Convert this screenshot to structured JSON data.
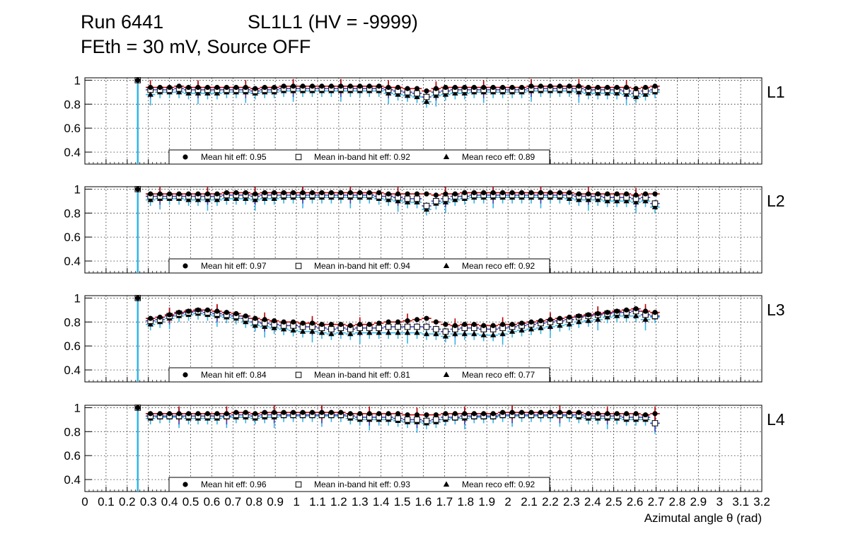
{
  "header": {
    "run": "Run 6441",
    "chamber": "SL1L1 (HV = -9999)",
    "conditions": "FEth = 30 mV, Source OFF"
  },
  "colors": {
    "hit": "#000000",
    "hit_bar": "#c00000",
    "inband_bar": "#4040c0",
    "reco_bar": "#33b5e5",
    "grid": "#000000",
    "frame": "#000000"
  },
  "chart_data": [
    {
      "type": "scatter",
      "layer": "L1",
      "xlabel": "Azimutal angle θ (rad)",
      "ylabel": "",
      "xlim": [
        0,
        3.2
      ],
      "ylim": [
        0.3,
        1.02
      ],
      "yticks": [
        "0.4",
        "0.6",
        "0.8",
        "1"
      ],
      "legend": [
        "Mean hit  eff: 0.95",
        "Mean in-band hit eff: 0.92",
        "Mean reco eff: 0.89"
      ],
      "first_point": {
        "x": 0.25,
        "hit": 1.0,
        "inband": 1.0,
        "reco": 1.0
      },
      "x": [
        0.31,
        0.355,
        0.4,
        0.445,
        0.49,
        0.535,
        0.58,
        0.625,
        0.67,
        0.715,
        0.76,
        0.805,
        0.85,
        0.895,
        0.94,
        0.985,
        1.03,
        1.075,
        1.12,
        1.165,
        1.21,
        1.255,
        1.3,
        1.345,
        1.39,
        1.435,
        1.48,
        1.525,
        1.57,
        1.615,
        1.66,
        1.705,
        1.75,
        1.795,
        1.84,
        1.885,
        1.93,
        1.975,
        2.02,
        2.065,
        2.11,
        2.155,
        2.2,
        2.245,
        2.29,
        2.335,
        2.38,
        2.425,
        2.47,
        2.515,
        2.56,
        2.605,
        2.65,
        2.695
      ],
      "hit": [
        0.94,
        0.94,
        0.94,
        0.95,
        0.94,
        0.94,
        0.94,
        0.94,
        0.94,
        0.94,
        0.94,
        0.93,
        0.94,
        0.94,
        0.95,
        0.95,
        0.95,
        0.95,
        0.95,
        0.95,
        0.95,
        0.95,
        0.95,
        0.95,
        0.95,
        0.94,
        0.94,
        0.93,
        0.93,
        0.91,
        0.93,
        0.94,
        0.94,
        0.94,
        0.94,
        0.94,
        0.94,
        0.94,
        0.94,
        0.94,
        0.95,
        0.95,
        0.95,
        0.95,
        0.95,
        0.95,
        0.94,
        0.94,
        0.94,
        0.94,
        0.94,
        0.93,
        0.94,
        0.95
      ],
      "inband": [
        0.92,
        0.92,
        0.92,
        0.93,
        0.92,
        0.92,
        0.92,
        0.92,
        0.92,
        0.92,
        0.92,
        0.91,
        0.92,
        0.92,
        0.93,
        0.93,
        0.93,
        0.93,
        0.93,
        0.93,
        0.93,
        0.93,
        0.93,
        0.93,
        0.93,
        0.92,
        0.91,
        0.9,
        0.89,
        0.86,
        0.9,
        0.91,
        0.92,
        0.92,
        0.92,
        0.92,
        0.92,
        0.92,
        0.92,
        0.92,
        0.93,
        0.93,
        0.93,
        0.93,
        0.93,
        0.93,
        0.92,
        0.92,
        0.92,
        0.92,
        0.91,
        0.89,
        0.91,
        0.92
      ],
      "reco": [
        0.88,
        0.9,
        0.9,
        0.9,
        0.89,
        0.89,
        0.89,
        0.89,
        0.9,
        0.9,
        0.9,
        0.89,
        0.9,
        0.9,
        0.91,
        0.91,
        0.91,
        0.91,
        0.91,
        0.91,
        0.91,
        0.91,
        0.91,
        0.91,
        0.91,
        0.89,
        0.88,
        0.87,
        0.86,
        0.82,
        0.87,
        0.88,
        0.89,
        0.89,
        0.9,
        0.9,
        0.9,
        0.9,
        0.9,
        0.9,
        0.91,
        0.91,
        0.91,
        0.91,
        0.91,
        0.9,
        0.89,
        0.89,
        0.89,
        0.89,
        0.88,
        0.86,
        0.88,
        0.9
      ]
    },
    {
      "type": "scatter",
      "layer": "L2",
      "xlabel": "Azimutal angle θ (rad)",
      "ylabel": "",
      "xlim": [
        0,
        3.2
      ],
      "ylim": [
        0.3,
        1.02
      ],
      "yticks": [
        "0.4",
        "0.6",
        "0.8",
        "1"
      ],
      "legend": [
        "Mean hit  eff: 0.97",
        "Mean in-band hit eff: 0.94",
        "Mean reco eff: 0.92"
      ],
      "first_point": {
        "x": 0.25,
        "hit": 1.0,
        "inband": 1.0,
        "reco": 1.0
      },
      "x": [
        0.31,
        0.355,
        0.4,
        0.445,
        0.49,
        0.535,
        0.58,
        0.625,
        0.67,
        0.715,
        0.76,
        0.805,
        0.85,
        0.895,
        0.94,
        0.985,
        1.03,
        1.075,
        1.12,
        1.165,
        1.21,
        1.255,
        1.3,
        1.345,
        1.39,
        1.435,
        1.48,
        1.525,
        1.57,
        1.615,
        1.66,
        1.705,
        1.75,
        1.795,
        1.84,
        1.885,
        1.93,
        1.975,
        2.02,
        2.065,
        2.11,
        2.155,
        2.2,
        2.245,
        2.29,
        2.335,
        2.38,
        2.425,
        2.47,
        2.515,
        2.56,
        2.605,
        2.65,
        2.695
      ],
      "hit": [
        0.96,
        0.96,
        0.96,
        0.96,
        0.96,
        0.96,
        0.96,
        0.96,
        0.97,
        0.97,
        0.97,
        0.96,
        0.97,
        0.97,
        0.97,
        0.97,
        0.97,
        0.97,
        0.97,
        0.97,
        0.97,
        0.97,
        0.97,
        0.97,
        0.97,
        0.96,
        0.96,
        0.96,
        0.96,
        0.96,
        0.95,
        0.96,
        0.96,
        0.97,
        0.97,
        0.97,
        0.97,
        0.97,
        0.97,
        0.97,
        0.97,
        0.97,
        0.97,
        0.97,
        0.97,
        0.96,
        0.96,
        0.96,
        0.96,
        0.96,
        0.96,
        0.95,
        0.96,
        0.96
      ],
      "inband": [
        0.94,
        0.94,
        0.94,
        0.94,
        0.94,
        0.94,
        0.94,
        0.94,
        0.95,
        0.95,
        0.95,
        0.94,
        0.95,
        0.95,
        0.95,
        0.95,
        0.95,
        0.95,
        0.95,
        0.95,
        0.95,
        0.95,
        0.95,
        0.95,
        0.94,
        0.94,
        0.93,
        0.92,
        0.92,
        0.86,
        0.9,
        0.92,
        0.94,
        0.94,
        0.95,
        0.95,
        0.95,
        0.95,
        0.95,
        0.95,
        0.95,
        0.95,
        0.95,
        0.95,
        0.95,
        0.94,
        0.94,
        0.94,
        0.93,
        0.93,
        0.93,
        0.92,
        0.93,
        0.88
      ],
      "reco": [
        0.91,
        0.92,
        0.92,
        0.92,
        0.91,
        0.91,
        0.91,
        0.91,
        0.92,
        0.92,
        0.92,
        0.91,
        0.92,
        0.92,
        0.93,
        0.93,
        0.93,
        0.93,
        0.93,
        0.93,
        0.93,
        0.93,
        0.93,
        0.93,
        0.92,
        0.91,
        0.9,
        0.89,
        0.89,
        0.83,
        0.88,
        0.89,
        0.91,
        0.92,
        0.93,
        0.93,
        0.93,
        0.93,
        0.93,
        0.93,
        0.93,
        0.93,
        0.93,
        0.93,
        0.92,
        0.91,
        0.91,
        0.91,
        0.9,
        0.9,
        0.9,
        0.89,
        0.9,
        0.85
      ]
    },
    {
      "type": "scatter",
      "layer": "L3",
      "xlabel": "Azimutal angle θ (rad)",
      "ylabel": "",
      "xlim": [
        0,
        3.2
      ],
      "ylim": [
        0.3,
        1.02
      ],
      "yticks": [
        "0.4",
        "0.6",
        "0.8",
        "1"
      ],
      "legend": [
        "Mean hit  eff: 0.84",
        "Mean in-band hit eff: 0.81",
        "Mean reco eff: 0.77"
      ],
      "first_point": {
        "x": 0.25,
        "hit": 1.0,
        "inband": 1.0,
        "reco": 1.0
      },
      "x": [
        0.31,
        0.355,
        0.4,
        0.445,
        0.49,
        0.535,
        0.58,
        0.625,
        0.67,
        0.715,
        0.76,
        0.805,
        0.85,
        0.895,
        0.94,
        0.985,
        1.03,
        1.075,
        1.12,
        1.165,
        1.21,
        1.255,
        1.3,
        1.345,
        1.39,
        1.435,
        1.48,
        1.525,
        1.57,
        1.615,
        1.66,
        1.705,
        1.75,
        1.795,
        1.84,
        1.885,
        1.93,
        1.975,
        2.02,
        2.065,
        2.11,
        2.155,
        2.2,
        2.245,
        2.29,
        2.335,
        2.38,
        2.425,
        2.47,
        2.515,
        2.56,
        2.605,
        2.65,
        2.695
      ],
      "hit": [
        0.83,
        0.84,
        0.86,
        0.88,
        0.89,
        0.9,
        0.9,
        0.89,
        0.88,
        0.87,
        0.85,
        0.83,
        0.82,
        0.81,
        0.8,
        0.8,
        0.79,
        0.79,
        0.78,
        0.78,
        0.78,
        0.77,
        0.78,
        0.78,
        0.79,
        0.8,
        0.8,
        0.81,
        0.82,
        0.83,
        0.8,
        0.78,
        0.77,
        0.78,
        0.78,
        0.77,
        0.77,
        0.78,
        0.78,
        0.79,
        0.8,
        0.81,
        0.82,
        0.83,
        0.84,
        0.85,
        0.86,
        0.87,
        0.88,
        0.89,
        0.9,
        0.91,
        0.89,
        0.88
      ],
      "inband": [
        0.81,
        0.82,
        0.85,
        0.87,
        0.88,
        0.89,
        0.88,
        0.87,
        0.86,
        0.85,
        0.83,
        0.8,
        0.79,
        0.78,
        0.77,
        0.77,
        0.76,
        0.76,
        0.75,
        0.74,
        0.75,
        0.74,
        0.75,
        0.75,
        0.75,
        0.76,
        0.76,
        0.76,
        0.76,
        0.76,
        0.74,
        0.72,
        0.74,
        0.75,
        0.75,
        0.74,
        0.74,
        0.75,
        0.76,
        0.77,
        0.78,
        0.79,
        0.8,
        0.81,
        0.82,
        0.84,
        0.85,
        0.86,
        0.87,
        0.88,
        0.88,
        0.89,
        0.86,
        0.85
      ],
      "reco": [
        0.78,
        0.8,
        0.83,
        0.85,
        0.86,
        0.87,
        0.86,
        0.85,
        0.84,
        0.83,
        0.8,
        0.77,
        0.76,
        0.75,
        0.74,
        0.73,
        0.72,
        0.72,
        0.71,
        0.7,
        0.71,
        0.7,
        0.71,
        0.71,
        0.71,
        0.71,
        0.71,
        0.71,
        0.71,
        0.7,
        0.7,
        0.68,
        0.7,
        0.7,
        0.7,
        0.69,
        0.69,
        0.7,
        0.72,
        0.73,
        0.74,
        0.75,
        0.76,
        0.77,
        0.78,
        0.8,
        0.81,
        0.82,
        0.84,
        0.85,
        0.85,
        0.85,
        0.82,
        0.84
      ]
    },
    {
      "type": "scatter",
      "layer": "L4",
      "xlabel": "Azimutal angle θ (rad)",
      "ylabel": "",
      "xlim": [
        0,
        3.2
      ],
      "ylim": [
        0.3,
        1.02
      ],
      "yticks": [
        "0.4",
        "0.6",
        "0.8",
        "1"
      ],
      "legend": [
        "Mean hit  eff: 0.96",
        "Mean in-band hit eff: 0.93",
        "Mean reco eff: 0.92"
      ],
      "first_point": {
        "x": 0.25,
        "hit": 1.0,
        "inband": 1.0,
        "reco": 1.0
      },
      "x": [
        0.31,
        0.355,
        0.4,
        0.445,
        0.49,
        0.535,
        0.58,
        0.625,
        0.67,
        0.715,
        0.76,
        0.805,
        0.85,
        0.895,
        0.94,
        0.985,
        1.03,
        1.075,
        1.12,
        1.165,
        1.21,
        1.255,
        1.3,
        1.345,
        1.39,
        1.435,
        1.48,
        1.525,
        1.57,
        1.615,
        1.66,
        1.705,
        1.75,
        1.795,
        1.84,
        1.885,
        1.93,
        1.975,
        2.02,
        2.065,
        2.11,
        2.155,
        2.2,
        2.245,
        2.29,
        2.335,
        2.38,
        2.425,
        2.47,
        2.515,
        2.56,
        2.605,
        2.65,
        2.695
      ],
      "hit": [
        0.95,
        0.95,
        0.95,
        0.95,
        0.95,
        0.95,
        0.95,
        0.95,
        0.95,
        0.96,
        0.96,
        0.95,
        0.96,
        0.96,
        0.96,
        0.96,
        0.96,
        0.96,
        0.96,
        0.96,
        0.96,
        0.95,
        0.95,
        0.95,
        0.95,
        0.95,
        0.95,
        0.94,
        0.94,
        0.94,
        0.94,
        0.95,
        0.95,
        0.95,
        0.95,
        0.95,
        0.95,
        0.96,
        0.96,
        0.96,
        0.96,
        0.96,
        0.96,
        0.96,
        0.96,
        0.96,
        0.95,
        0.95,
        0.95,
        0.95,
        0.95,
        0.95,
        0.94,
        0.95
      ],
      "inband": [
        0.93,
        0.93,
        0.93,
        0.93,
        0.93,
        0.93,
        0.93,
        0.93,
        0.93,
        0.94,
        0.94,
        0.93,
        0.94,
        0.94,
        0.94,
        0.94,
        0.94,
        0.94,
        0.94,
        0.94,
        0.94,
        0.93,
        0.92,
        0.92,
        0.92,
        0.92,
        0.91,
        0.9,
        0.9,
        0.89,
        0.9,
        0.92,
        0.92,
        0.93,
        0.93,
        0.93,
        0.93,
        0.94,
        0.94,
        0.94,
        0.94,
        0.94,
        0.94,
        0.94,
        0.94,
        0.94,
        0.93,
        0.93,
        0.93,
        0.93,
        0.92,
        0.92,
        0.92,
        0.87
      ],
      "reco": [
        0.91,
        0.92,
        0.92,
        0.92,
        0.91,
        0.91,
        0.91,
        0.91,
        0.92,
        0.92,
        0.92,
        0.91,
        0.92,
        0.92,
        0.93,
        0.93,
        0.93,
        0.93,
        0.93,
        0.93,
        0.93,
        0.91,
        0.9,
        0.9,
        0.9,
        0.9,
        0.89,
        0.88,
        0.88,
        0.87,
        0.88,
        0.9,
        0.91,
        0.91,
        0.92,
        0.92,
        0.92,
        0.93,
        0.93,
        0.93,
        0.93,
        0.93,
        0.93,
        0.93,
        0.93,
        0.92,
        0.91,
        0.91,
        0.91,
        0.91,
        0.9,
        0.9,
        0.9,
        0.87
      ]
    }
  ],
  "xaxis": {
    "label": "Azimutal angle θ (rad)",
    "ticks": [
      {
        "v": 0,
        "label": "0"
      },
      {
        "v": 0.1,
        "label": "0.1"
      },
      {
        "v": 0.2,
        "label": "0.2"
      },
      {
        "v": 0.3,
        "label": "0.3"
      },
      {
        "v": 0.4,
        "label": "0.4"
      },
      {
        "v": 0.5,
        "label": "0.5"
      },
      {
        "v": 0.6,
        "label": "0.6"
      },
      {
        "v": 0.7,
        "label": "0.7"
      },
      {
        "v": 0.8,
        "label": "0.8"
      },
      {
        "v": 0.9,
        "label": "0.9"
      },
      {
        "v": 1.0,
        "label": "1"
      },
      {
        "v": 1.1,
        "label": "1.1"
      },
      {
        "v": 1.2,
        "label": "1.2"
      },
      {
        "v": 1.3,
        "label": "1.3"
      },
      {
        "v": 1.4,
        "label": "1.4"
      },
      {
        "v": 1.5,
        "label": "1.5"
      },
      {
        "v": 1.6,
        "label": "1.6"
      },
      {
        "v": 1.7,
        "label": "1.7"
      },
      {
        "v": 1.8,
        "label": "1.8"
      },
      {
        "v": 1.9,
        "label": "1.9"
      },
      {
        "v": 2.0,
        "label": "2"
      },
      {
        "v": 2.1,
        "label": "2.1"
      },
      {
        "v": 2.2,
        "label": "2.2"
      },
      {
        "v": 2.3,
        "label": "2.3"
      },
      {
        "v": 2.4,
        "label": "2.4"
      },
      {
        "v": 2.5,
        "label": "2.5"
      },
      {
        "v": 2.6,
        "label": "2.6"
      },
      {
        "v": 2.7,
        "label": "2.7"
      },
      {
        "v": 2.8,
        "label": "2.8"
      },
      {
        "v": 2.9,
        "label": "2.9"
      },
      {
        "v": 3.0,
        "label": "3"
      },
      {
        "v": 3.1,
        "label": "3.1"
      },
      {
        "v": 3.2,
        "label": "3.2"
      }
    ]
  }
}
